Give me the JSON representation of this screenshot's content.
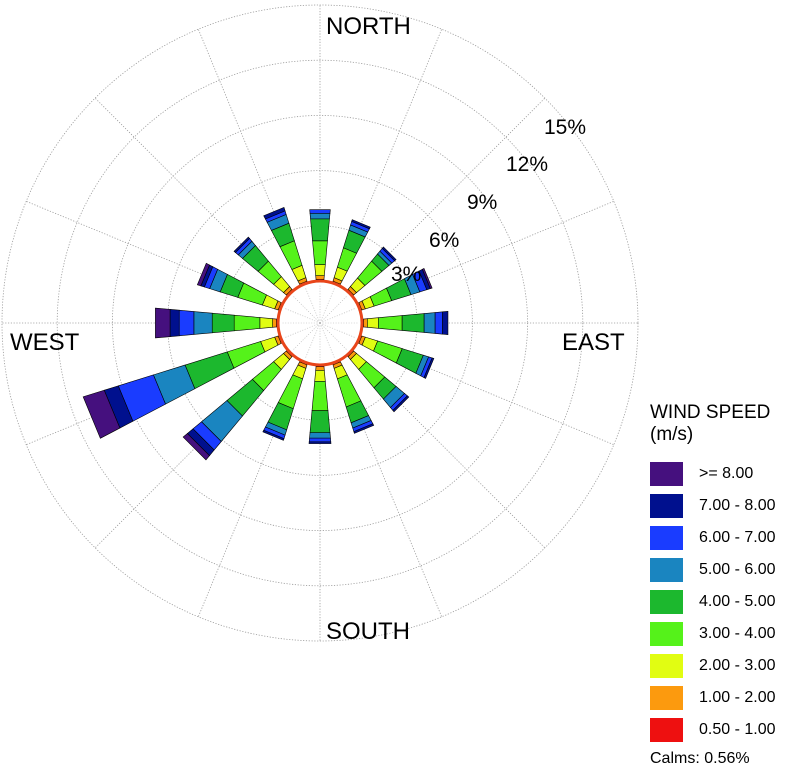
{
  "chart_data": {
    "type": "wind-rose",
    "title": "",
    "direction_labels": {
      "north": "NORTH",
      "east": "EAST",
      "south": "SOUTH",
      "west": "WEST"
    },
    "radial_unit": "%",
    "radial_ticks": [
      3,
      6,
      9,
      12,
      15
    ],
    "radial_tick_labels": [
      "3%",
      "6%",
      "9%",
      "12%",
      "15%"
    ],
    "grid": true,
    "legend": {
      "title": "WIND SPEED",
      "unit": "(m/s)",
      "placement": "bottom-right",
      "bins": [
        {
          "label": ">= 8.00",
          "color": "#45107e"
        },
        {
          "label": "7.00 - 8.00",
          "color": "#00108e"
        },
        {
          "label": "6.00 - 7.00",
          "color": "#1a3cff"
        },
        {
          "label": "5.00 - 6.00",
          "color": "#1a85c0"
        },
        {
          "label": "4.00 - 5.00",
          "color": "#1cb82e"
        },
        {
          "label": "3.00 - 4.00",
          "color": "#55f21a"
        },
        {
          "label": "2.00 - 3.00",
          "color": "#e1fd12"
        },
        {
          "label": "1.00 - 2.00",
          "color": "#fc9a0e"
        },
        {
          "label": "0.50 - 1.00",
          "color": "#ee1010"
        }
      ]
    },
    "calms_label": "Calms: 0.56%",
    "sector_width_deg": 22.5,
    "directions_deg": [
      0,
      22.5,
      45,
      67.5,
      90,
      112.5,
      135,
      157.5,
      180,
      202.5,
      225,
      247.5,
      270,
      292.5,
      315,
      337.5
    ],
    "bin_order": [
      "0.50 - 1.00",
      "1.00 - 2.00",
      "2.00 - 3.00",
      "3.00 - 4.00",
      "4.00 - 5.00",
      "5.00 - 6.00",
      "6.00 - 7.00",
      "7.00 - 8.00",
      ">= 8.00"
    ],
    "frequencies_percent": [
      [
        0.1,
        0.2,
        0.6,
        1.3,
        1.2,
        0.3,
        0.2,
        0.0,
        0.0
      ],
      [
        0.1,
        0.2,
        0.6,
        1.1,
        1.0,
        0.3,
        0.2,
        0.1,
        0.0
      ],
      [
        0.1,
        0.2,
        0.6,
        1.2,
        0.5,
        0.2,
        0.2,
        0.1,
        0.0
      ],
      [
        0.1,
        0.2,
        0.5,
        1.0,
        1.1,
        0.5,
        0.4,
        0.2,
        0.1
      ],
      [
        0.1,
        0.2,
        0.6,
        1.3,
        1.2,
        0.6,
        0.4,
        0.3,
        0.0
      ],
      [
        0.1,
        0.2,
        0.7,
        1.4,
        1.2,
        0.3,
        0.2,
        0.1,
        0.0
      ],
      [
        0.1,
        0.2,
        0.7,
        1.3,
        0.8,
        0.6,
        0.2,
        0.1,
        0.0
      ],
      [
        0.1,
        0.2,
        0.6,
        1.6,
        0.9,
        0.3,
        0.2,
        0.1,
        0.0
      ],
      [
        0.1,
        0.2,
        0.6,
        1.6,
        1.2,
        0.3,
        0.2,
        0.1,
        0.0
      ],
      [
        0.1,
        0.2,
        0.6,
        1.7,
        1.2,
        0.3,
        0.2,
        0.1,
        0.0
      ],
      [
        0.1,
        0.2,
        0.7,
        1.5,
        1.8,
        1.8,
        0.6,
        0.4,
        0.3
      ],
      [
        0.1,
        0.2,
        0.8,
        1.9,
        2.4,
        1.8,
        2.0,
        0.8,
        1.2
      ],
      [
        0.1,
        0.2,
        0.7,
        1.4,
        1.2,
        1.0,
        0.8,
        0.5,
        0.8
      ],
      [
        0.1,
        0.2,
        0.7,
        1.4,
        1.0,
        0.6,
        0.3,
        0.2,
        0.2
      ],
      [
        0.1,
        0.2,
        0.7,
        1.1,
        1.1,
        0.3,
        0.2,
        0.1,
        0.0
      ],
      [
        0.1,
        0.2,
        0.7,
        1.4,
        1.0,
        0.5,
        0.2,
        0.2,
        0.0
      ]
    ]
  }
}
